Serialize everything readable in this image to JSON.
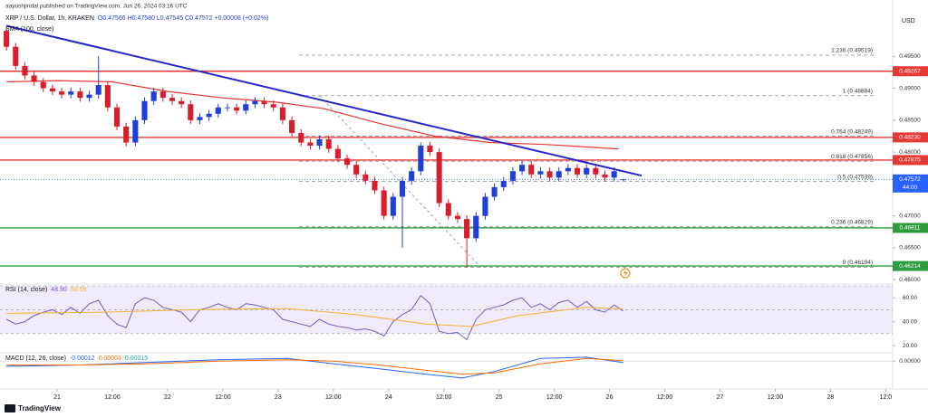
{
  "header": {
    "published": "aayushjindal published on TradingView.com, Jun 26, 2024 03:16 UTC"
  },
  "footer": {
    "brand": "TradingView"
  },
  "chart_data": [
    {
      "type": "candlestick",
      "title": "XRP / U.S. Dollar, 1h, KRAKEN",
      "legend_values": "O0.47566 H0.47580 L0.47545 C0.47572 +0.00008 (+0.02%)",
      "currency": "USD",
      "up_color": "#1f3fd6",
      "down_color": "#d81e2c",
      "xlim": [
        -12.4,
        181.5
      ],
      "xticks": [
        {
          "value": 0,
          "label": "21"
        },
        {
          "value": 12,
          "label": "12:00"
        },
        {
          "value": 24,
          "label": "22"
        },
        {
          "value": 36,
          "label": "12:00"
        },
        {
          "value": 48,
          "label": "23"
        },
        {
          "value": 60,
          "label": "12:00"
        },
        {
          "value": 72,
          "label": "24"
        },
        {
          "value": 84,
          "label": "12:00"
        },
        {
          "value": 96,
          "label": "25"
        },
        {
          "value": 108,
          "label": "12:00"
        },
        {
          "value": 120,
          "label": "26"
        },
        {
          "value": 132,
          "label": "12:00"
        },
        {
          "value": 144,
          "label": "27"
        },
        {
          "value": 156,
          "label": "12:00"
        },
        {
          "value": 168,
          "label": "28"
        },
        {
          "value": 180,
          "label": "12:0"
        }
      ],
      "ylim": [
        0.4596,
        0.501
      ],
      "yticks": [
        {
          "value": 0.495,
          "label": "0.49500"
        },
        {
          "value": 0.49,
          "label": "0.49000"
        },
        {
          "value": 0.485,
          "label": "0.48500"
        },
        {
          "value": 0.48,
          "label": "0.48000"
        },
        {
          "value": 0.47,
          "label": "0.47000"
        },
        {
          "value": 0.465,
          "label": "0.46500"
        },
        {
          "value": 0.46,
          "label": "0.46000"
        }
      ],
      "x": [
        -11,
        -9,
        -7,
        -5,
        -3,
        -1,
        1,
        3,
        5,
        7,
        9,
        11,
        13,
        15,
        17,
        19,
        21,
        23,
        25,
        27,
        29,
        31,
        33,
        35,
        37,
        39,
        41,
        43,
        45,
        47,
        49,
        51,
        53,
        55,
        57,
        59,
        61,
        63,
        65,
        67,
        69,
        71,
        73,
        75,
        77,
        79,
        81,
        83,
        85,
        87,
        89,
        91,
        93,
        95,
        97,
        99,
        101,
        103,
        105,
        107,
        109,
        111,
        113,
        115,
        117,
        119,
        121,
        123
      ],
      "open": [
        0.499,
        0.4965,
        0.4935,
        0.492,
        0.491,
        0.49,
        0.4895,
        0.489,
        0.4895,
        0.4885,
        0.489,
        0.4905,
        0.487,
        0.484,
        0.4815,
        0.485,
        0.488,
        0.4895,
        0.4885,
        0.488,
        0.4875,
        0.485,
        0.4855,
        0.486,
        0.487,
        0.487,
        0.4865,
        0.4875,
        0.488,
        0.4875,
        0.487,
        0.485,
        0.483,
        0.4815,
        0.481,
        0.482,
        0.4805,
        0.479,
        0.478,
        0.4765,
        0.4755,
        0.474,
        0.47,
        0.473,
        0.4755,
        0.477,
        0.481,
        0.48,
        0.472,
        0.47,
        0.4695,
        0.4665,
        0.47,
        0.473,
        0.4745,
        0.4755,
        0.477,
        0.478,
        0.4765,
        0.477,
        0.476,
        0.477,
        0.4775,
        0.4765,
        0.4775,
        0.4765,
        0.476,
        0.47566
      ],
      "high": [
        0.4996,
        0.4971,
        0.4941,
        0.4926,
        0.4916,
        0.4906,
        0.4901,
        0.4901,
        0.4901,
        0.4896,
        0.495,
        0.4911,
        0.4876,
        0.4846,
        0.4856,
        0.4886,
        0.4901,
        0.4901,
        0.4891,
        0.4886,
        0.4881,
        0.4861,
        0.4866,
        0.4876,
        0.4876,
        0.4876,
        0.4881,
        0.4886,
        0.4886,
        0.4881,
        0.4876,
        0.4856,
        0.4836,
        0.4821,
        0.4826,
        0.4826,
        0.4811,
        0.4796,
        0.4786,
        0.4771,
        0.4761,
        0.4746,
        0.4736,
        0.4761,
        0.4776,
        0.4815,
        0.4816,
        0.4806,
        0.4726,
        0.4706,
        0.4701,
        0.4706,
        0.4736,
        0.4751,
        0.4761,
        0.4776,
        0.4786,
        0.4786,
        0.4776,
        0.4776,
        0.4776,
        0.4781,
        0.4781,
        0.4781,
        0.4781,
        0.4771,
        0.4776,
        0.4758
      ],
      "low": [
        0.4959,
        0.4929,
        0.4914,
        0.4904,
        0.4894,
        0.4889,
        0.4884,
        0.4884,
        0.4879,
        0.4879,
        0.4884,
        0.4864,
        0.4834,
        0.4809,
        0.4809,
        0.4844,
        0.4874,
        0.4879,
        0.4874,
        0.4869,
        0.4844,
        0.4844,
        0.4849,
        0.4854,
        0.4864,
        0.4859,
        0.4859,
        0.4869,
        0.4869,
        0.4864,
        0.4844,
        0.4824,
        0.4809,
        0.4804,
        0.4804,
        0.4799,
        0.4784,
        0.4774,
        0.4759,
        0.4749,
        0.4734,
        0.4694,
        0.4694,
        0.465,
        0.4749,
        0.4764,
        0.4794,
        0.4714,
        0.4694,
        0.4689,
        0.4619,
        0.4659,
        0.4694,
        0.4724,
        0.4739,
        0.4749,
        0.4764,
        0.4759,
        0.4759,
        0.4754,
        0.4754,
        0.4764,
        0.4759,
        0.4759,
        0.4759,
        0.4754,
        0.4754,
        0.47545
      ],
      "close": [
        0.4965,
        0.4935,
        0.492,
        0.491,
        0.49,
        0.4895,
        0.489,
        0.4895,
        0.4885,
        0.489,
        0.4905,
        0.487,
        0.484,
        0.4815,
        0.485,
        0.488,
        0.4895,
        0.4885,
        0.488,
        0.4875,
        0.485,
        0.4855,
        0.486,
        0.487,
        0.487,
        0.4865,
        0.4875,
        0.488,
        0.4875,
        0.487,
        0.485,
        0.483,
        0.4815,
        0.481,
        0.482,
        0.4805,
        0.479,
        0.478,
        0.4765,
        0.4755,
        0.474,
        0.47,
        0.473,
        0.4755,
        0.477,
        0.481,
        0.48,
        0.472,
        0.47,
        0.4695,
        0.4665,
        0.47,
        0.473,
        0.4745,
        0.4755,
        0.477,
        0.478,
        0.4765,
        0.477,
        0.476,
        0.477,
        0.4775,
        0.4765,
        0.4775,
        0.4765,
        0.476,
        0.477,
        0.47572
      ],
      "series": [
        {
          "name": "SMA (100, close)",
          "color": "#e53935",
          "x": [
            -11,
            0,
            12,
            24,
            36,
            48,
            58,
            70,
            82,
            94,
            106,
            122
          ],
          "values": [
            0.491,
            0.4912,
            0.491,
            0.4895,
            0.4885,
            0.4878,
            0.4868,
            0.4845,
            0.4825,
            0.4815,
            0.4812,
            0.4805
          ]
        }
      ],
      "trendline": {
        "color": "#2626c8",
        "x": [
          -11,
          127
        ],
        "values": [
          0.4998,
          0.4763
        ]
      },
      "fib_line": {
        "x": [
          57,
          92
        ],
        "values": [
          0.48884,
          0.46194
        ]
      },
      "levels": [
        {
          "value": 0.49267,
          "label": "0.49267",
          "color": "#e53935"
        },
        {
          "value": 0.4823,
          "label": "0.48230",
          "color": "#e53935"
        },
        {
          "value": 0.47875,
          "label": "0.47875",
          "color": "#e53935"
        },
        {
          "value": 0.46811,
          "label": "0.46811",
          "color": "#2e9b3e"
        },
        {
          "value": 0.46214,
          "label": "0.46214",
          "color": "#2e9b3e"
        }
      ],
      "fib": [
        {
          "value": 0.49519,
          "label": "1.236 (0.49519)"
        },
        {
          "value": 0.48884,
          "label": "1 (0.48884)"
        },
        {
          "value": 0.48249,
          "label": "0.764 (0.48249)"
        },
        {
          "value": 0.47856,
          "label": "0.618 (0.47856)"
        },
        {
          "value": 0.47539,
          "label": "0.5 (0.47539)"
        },
        {
          "value": 0.46829,
          "label": "0.236 (0.46829)"
        },
        {
          "value": 0.46194,
          "label": "0 (0.46194)"
        }
      ],
      "last_price": {
        "value": 0.47572,
        "label": "0.47572",
        "countdown": "44:00",
        "color": "#2962ff"
      }
    },
    {
      "type": "line",
      "title": "RSI (14, close)",
      "legend_values": [
        "48.90",
        "50.59"
      ],
      "ylim": [
        15.5,
        70
      ],
      "band": [
        30,
        70
      ],
      "band_color": "#7e57c2",
      "hlines": [
        70,
        50,
        30
      ],
      "yticks": [
        {
          "value": 60,
          "label": "60.00"
        },
        {
          "value": 40,
          "label": "40.00"
        },
        {
          "value": 20,
          "label": "20.00"
        }
      ],
      "series": [
        {
          "name": "RSI",
          "color": "#7e57c2",
          "x": [
            -11,
            -9,
            -7,
            -5,
            -3,
            -1,
            1,
            3,
            5,
            7,
            9,
            11,
            13,
            15,
            17,
            19,
            21,
            23,
            25,
            27,
            29,
            31,
            33,
            35,
            37,
            39,
            41,
            43,
            45,
            47,
            49,
            51,
            53,
            55,
            57,
            59,
            61,
            63,
            65,
            67,
            69,
            71,
            73,
            75,
            77,
            79,
            81,
            83,
            85,
            87,
            89,
            91,
            93,
            95,
            97,
            99,
            101,
            103,
            105,
            107,
            109,
            111,
            113,
            115,
            117,
            119,
            121,
            123
          ],
          "values": [
            42,
            38,
            40,
            45,
            48,
            50,
            46,
            52,
            47,
            55,
            58,
            45,
            38,
            35,
            55,
            60,
            58,
            52,
            50,
            48,
            40,
            50,
            52,
            55,
            52,
            50,
            55,
            54,
            52,
            50,
            42,
            40,
            38,
            36,
            42,
            38,
            36,
            35,
            33,
            34,
            32,
            28,
            40,
            46,
            50,
            62,
            55,
            32,
            30,
            31,
            25,
            42,
            50,
            52,
            54,
            58,
            60,
            52,
            55,
            50,
            56,
            58,
            52,
            57,
            50,
            48,
            54,
            48.9
          ]
        },
        {
          "name": "RSI MA",
          "color": "#f2b134",
          "x": [
            -11,
            10,
            30,
            50,
            65,
            80,
            90,
            100,
            115,
            123
          ],
          "values": [
            47,
            48,
            50,
            51,
            46,
            38,
            36,
            45,
            52,
            50.59
          ]
        }
      ]
    },
    {
      "type": "line",
      "title": "MACD (12, 26, close)",
      "legend_values": [
        "-0.00012",
        "0.00003",
        "0.00015"
      ],
      "ylim": [
        -0.002,
        0.0005
      ],
      "yticks": [
        {
          "value": 0,
          "label": "0.00000"
        }
      ],
      "series": [
        {
          "name": "MACD",
          "color": "#2962ff",
          "x": [
            -11,
            5,
            20,
            35,
            50,
            60,
            70,
            80,
            88,
            95,
            105,
            115,
            123
          ],
          "values": [
            -0.0004,
            -0.0003,
            -0.0001,
            0.0001,
            0.0002,
            -0.0002,
            -0.0006,
            -0.001,
            -0.0013,
            -0.0008,
            0.0002,
            0.0003,
            -0.00012
          ]
        },
        {
          "name": "Signal",
          "color": "#ff6d00",
          "x": [
            -11,
            5,
            20,
            35,
            50,
            60,
            70,
            80,
            88,
            95,
            105,
            115,
            123
          ],
          "values": [
            -0.0003,
            -0.0003,
            -0.0002,
            0,
            0.0001,
            0,
            -0.0003,
            -0.0007,
            -0.001,
            -0.0009,
            -0.0002,
            0.0002,
            3e-05
          ]
        }
      ]
    }
  ]
}
